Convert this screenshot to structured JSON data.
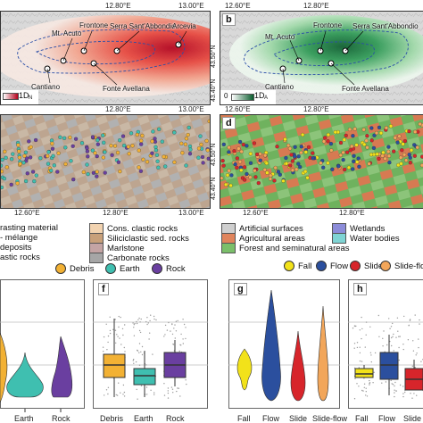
{
  "panels": {
    "a": {
      "letter": "",
      "labels": [
        "Mt. Acuto",
        "Frontone",
        "Serra Sant'Abbondio",
        "Arcevia",
        "Cantiano",
        "Fonte Avellana"
      ],
      "colorbar_max": "1D",
      "colorbar_sub": "N"
    },
    "b": {
      "letter": "b",
      "labels": [
        "Mt. Acuto",
        "Frontone",
        "Serra Sant'Abbondio",
        "Cantiano",
        "Fonte Avellana"
      ],
      "colorbar_min": "0",
      "colorbar_max": "1D",
      "colorbar_sub": "A"
    },
    "c": {
      "letter": ""
    },
    "d": {
      "letter": "d"
    },
    "e": {
      "letter": ""
    },
    "f": {
      "letter": "f"
    },
    "g": {
      "letter": "g"
    },
    "h": {
      "letter": "h"
    }
  },
  "ticks": {
    "top_a": [
      "12.80°E",
      "13.00°E"
    ],
    "top_b": [
      "12.60°E",
      "12.80°E"
    ],
    "mid_a": [
      "12.80°E",
      "13.00°E"
    ],
    "mid_b": [
      "12.60°E",
      "12.80°E"
    ],
    "bot_a": [
      "12.60°E",
      "12.80°E",
      "13.00°E"
    ],
    "bot_b": [
      "12.60°E",
      "12.80°E"
    ],
    "lat_top": [
      "43.50°N",
      "43.40°N"
    ],
    "lat_mid": [
      "43.50°N",
      "43.40°N"
    ]
  },
  "legend_lithology": {
    "col1": [
      "rasting material",
      "- mélange",
      "deposits",
      "astic rocks"
    ],
    "col2": [
      "Cons. clastic rocks",
      "Siliciclastic sed. rocks",
      "Marlstone",
      "Carbonate rocks"
    ],
    "colors2": [
      "#f2d3b0",
      "#c8a07a",
      "#c4a4a4",
      "#a6a6a6"
    ]
  },
  "legend_landuse": {
    "items": [
      "Artificial surfaces",
      "Agricultural areas",
      "Forest and seminatural areas",
      "Wetlands",
      "Water bodies"
    ],
    "colors": [
      "#cfcfcf",
      "#e0845c",
      "#7bbf6a",
      "#8c8cd9",
      "#7fd4d4"
    ]
  },
  "legend_movement": {
    "items": [
      "Debris",
      "Earth",
      "Rock"
    ],
    "colors": [
      "#f2b134",
      "#3fbfb0",
      "#6a3fa0"
    ]
  },
  "legend_landslide": {
    "items": [
      "Fall",
      "Flow",
      "Slide",
      "Slide-flow"
    ],
    "colors": [
      "#f2e21a",
      "#2b4f9e",
      "#d7252b",
      "#f2a65a"
    ]
  },
  "chart_data": [
    {
      "type": "violin",
      "panel": "e",
      "categories": [
        "Earth",
        "Rock"
      ],
      "partial_categories": [
        "Debris"
      ]
    },
    {
      "type": "box",
      "panel": "f",
      "categories": [
        "Debris",
        "Earth",
        "Rock"
      ]
    },
    {
      "type": "violin",
      "panel": "g",
      "categories": [
        "Fall",
        "Flow",
        "Slide",
        "Slide-flow"
      ]
    },
    {
      "type": "box",
      "panel": "h",
      "categories": [
        "Fall",
        "Flow",
        "Slide"
      ]
    }
  ]
}
